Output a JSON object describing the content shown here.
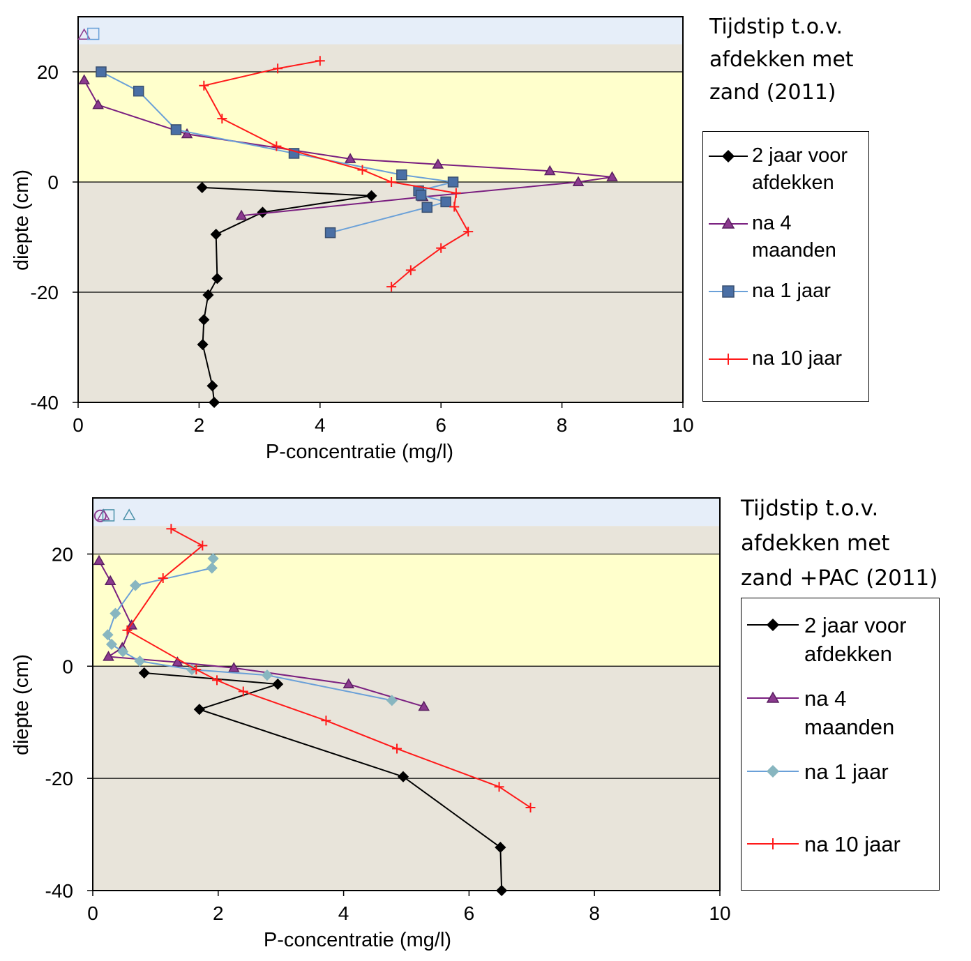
{
  "charts": [
    {
      "legend_title": "Tijdstip t.o.v.\nafdekken met\nzand (2011)",
      "chart_data": {
        "type": "line",
        "xlabel": "P-concentratie (mg/l)",
        "ylabel": "diepte (cm)",
        "xlim": [
          0,
          10
        ],
        "ylim": [
          -40,
          30
        ],
        "xticks": [
          "0",
          "2",
          "4",
          "6",
          "8",
          "10"
        ],
        "yticks": [
          "-40",
          "-20",
          "0",
          "20"
        ],
        "ytick_values": [
          -40,
          -20,
          0,
          20
        ],
        "xtick_values": [
          0,
          2,
          4,
          6,
          8,
          10
        ],
        "zones": [
          {
            "ymin": 25,
            "ymax": 30,
            "color": "#e6eef9"
          },
          {
            "ymin": 20,
            "ymax": 25,
            "color": "#e8e4da"
          },
          {
            "ymin": 0,
            "ymax": 20,
            "color": "#ffffcc"
          },
          {
            "ymin": -40,
            "ymax": 0,
            "color": "#e8e4da"
          }
        ],
        "gridlines_y": [
          20,
          0,
          -20
        ],
        "series": [
          {
            "name": "2 jaar voor\nafdekken",
            "marker": "diamond",
            "color": "#000000",
            "marker_color": "#000000",
            "x": [
              2.05,
              4.85,
              3.05,
              2.28,
              2.3,
              2.15,
              2.08,
              2.06,
              2.22,
              2.25
            ],
            "y": [
              -1,
              -2.5,
              -5.5,
              -9.5,
              -17.5,
              -20.5,
              -25,
              -29.5,
              -37,
              -40
            ]
          },
          {
            "name": "na 4\nmaanden",
            "marker": "triangle",
            "color": "#7a1f80",
            "marker_color": "#8b3a8f",
            "x": [
              0.1,
              0.33,
              1.8,
              4.5,
              5.95,
              7.8,
              8.83,
              8.27,
              5.7,
              2.7
            ],
            "y": [
              18.5,
              14,
              8.7,
              4.2,
              3.2,
              2,
              0.9,
              0,
              -2.7,
              -6.1
            ]
          },
          {
            "name": "na 1 jaar",
            "marker": "square",
            "color": "#6aa0d8",
            "marker_color": "#4a6fa5",
            "x": [
              0.38,
              1.0,
              1.62,
              3.57,
              5.35,
              6.2,
              5.63,
              5.67,
              6.08,
              5.77,
              4.17
            ],
            "y": [
              20,
              16.5,
              9.5,
              5.2,
              1.3,
              0,
              -1.6,
              -2.4,
              -3.6,
              -4.6,
              -9.2
            ]
          },
          {
            "name": "na 10 jaar",
            "marker": "plus",
            "color": "#ff1a1a",
            "marker_color": "#ff1a1a",
            "x": [
              4.0,
              3.3,
              2.08,
              2.38,
              3.28,
              4.7,
              5.18,
              6.25,
              6.22,
              6.45,
              6.0,
              5.5,
              5.18
            ],
            "y": [
              22,
              20.6,
              17.5,
              11.5,
              6.5,
              2.2,
              0,
              -2,
              -4.5,
              -9,
              -12,
              -16,
              -19
            ]
          }
        ],
        "surface_markers": [
          {
            "shape": "triangle",
            "x": 0.1,
            "y": 26.7,
            "color": "#8b3a8f"
          },
          {
            "shape": "square",
            "x": 0.25,
            "y": 26.9,
            "color": "#6aa0d8"
          }
        ]
      }
    },
    {
      "legend_title": "Tijdstip t.o.v.\nafdekken met\nzand +PAC (2011)",
      "chart_data": {
        "type": "line",
        "xlabel": "P-concentratie (mg/l)",
        "ylabel": "diepte (cm)",
        "xlim": [
          0,
          10
        ],
        "ylim": [
          -40,
          30
        ],
        "xticks": [
          "0",
          "2",
          "4",
          "6",
          "8",
          "10"
        ],
        "yticks": [
          "-40",
          "-20",
          "0",
          "20"
        ],
        "ytick_values": [
          -40,
          -20,
          0,
          20
        ],
        "xtick_values": [
          0,
          2,
          4,
          6,
          8,
          10
        ],
        "zones": [
          {
            "ymin": 25,
            "ymax": 30,
            "color": "#e6eef9"
          },
          {
            "ymin": 20,
            "ymax": 25,
            "color": "#e8e4da"
          },
          {
            "ymin": 0,
            "ymax": 20,
            "color": "#ffffcc"
          },
          {
            "ymin": -40,
            "ymax": 0,
            "color": "#e8e4da"
          }
        ],
        "gridlines_y": [
          20,
          0,
          -20
        ],
        "series": [
          {
            "name": "2 jaar voor\nafdekken",
            "marker": "diamond",
            "color": "#000000",
            "marker_color": "#000000",
            "x": [
              0.82,
              2.95,
              1.7,
              4.95,
              6.5,
              6.52
            ],
            "y": [
              -1.2,
              -3.2,
              -7.7,
              -19.7,
              -32.3,
              -40
            ]
          },
          {
            "name": "na 4\nmaanden",
            "marker": "triangle",
            "color": "#7a1f80",
            "marker_color": "#8b3a8f",
            "x": [
              0.1,
              0.28,
              0.62,
              0.47,
              0.25,
              1.35,
              2.25,
              4.08,
              5.28
            ],
            "y": [
              18.8,
              15.2,
              7.3,
              3.3,
              1.7,
              0.7,
              -0.3,
              -3.2,
              -7.2
            ]
          },
          {
            "name": "na 1 jaar",
            "marker": "diamond",
            "color": "#6aa0d8",
            "marker_color": "#88b6c0",
            "x": [
              1.92,
              1.9,
              0.68,
              0.36,
              0.24,
              0.3,
              0.48,
              0.75,
              1.58,
              2.78,
              4.77
            ],
            "y": [
              19.2,
              17.5,
              14.4,
              9.4,
              5.6,
              3.9,
              2.6,
              0.9,
              -0.6,
              -1.6,
              -6.1
            ]
          },
          {
            "name": "na 10 jaar",
            "marker": "plus",
            "color": "#ff1a1a",
            "marker_color": "#ff1a1a",
            "x": [
              1.25,
              1.75,
              1.12,
              0.55,
              1.65,
              1.98,
              2.4,
              3.72,
              4.85,
              6.48,
              6.98
            ],
            "y": [
              24.5,
              21.5,
              15.7,
              6.4,
              -0.6,
              -2.5,
              -4.5,
              -9.7,
              -14.7,
              -21.5,
              -25.2
            ]
          }
        ],
        "surface_markers": [
          {
            "shape": "circle",
            "x": 0.12,
            "y": 26.8,
            "color": "#8b3a8f"
          },
          {
            "shape": "triangle",
            "x": 0.17,
            "y": 26.9,
            "color": "#8b3a8f"
          },
          {
            "shape": "square",
            "x": 0.25,
            "y": 26.9,
            "color": "#4a90a8"
          },
          {
            "shape": "triangle",
            "x": 0.58,
            "y": 26.9,
            "color": "#4a90a8"
          }
        ]
      }
    }
  ]
}
